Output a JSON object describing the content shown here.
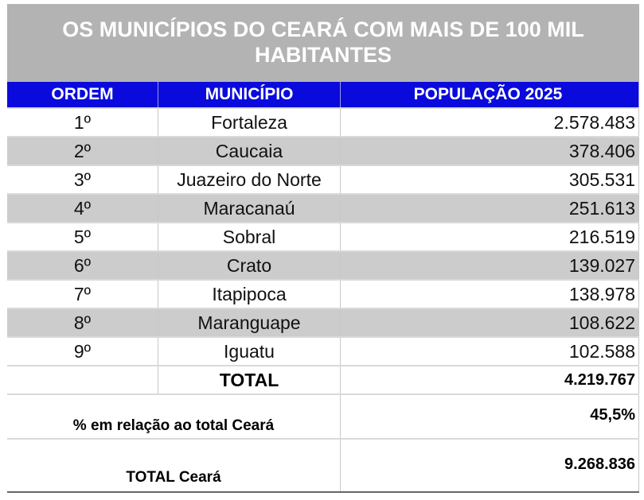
{
  "title": "OS MUNICÍPIOS DO CEARÁ COM MAIS DE 100 MIL HABITANTES",
  "colors": {
    "title_bg": "#b3b3b3",
    "header_bg": "#0a0adc",
    "alt_row": "#cccccc"
  },
  "headers": [
    "ORDEM",
    "MUNICÍPIO",
    "POPULAÇÃO 2025"
  ],
  "rows": [
    {
      "ordem": "1º",
      "municipio": "Fortaleza",
      "populacao": "2.578.483"
    },
    {
      "ordem": "2º",
      "municipio": "Caucaia",
      "populacao": "378.406"
    },
    {
      "ordem": "3º",
      "municipio": "Juazeiro do Norte",
      "populacao": "305.531"
    },
    {
      "ordem": "4º",
      "municipio": "Maracanaú",
      "populacao": "251.613"
    },
    {
      "ordem": "5º",
      "municipio": "Sobral",
      "populacao": "216.519"
    },
    {
      "ordem": "6º",
      "municipio": "Crato",
      "populacao": "139.027"
    },
    {
      "ordem": "7º",
      "municipio": "Itapipoca",
      "populacao": "138.978"
    },
    {
      "ordem": "8º",
      "municipio": "Maranguape",
      "populacao": "108.622"
    },
    {
      "ordem": "9º",
      "municipio": "Iguatu",
      "populacao": "102.588"
    }
  ],
  "total": {
    "label": "TOTAL",
    "value": "4.219.767"
  },
  "percent": {
    "label": "% em relação ao total Ceará",
    "value": "45,5%"
  },
  "total_ceara": {
    "label": "TOTAL Ceará",
    "value": "9.268.836"
  }
}
